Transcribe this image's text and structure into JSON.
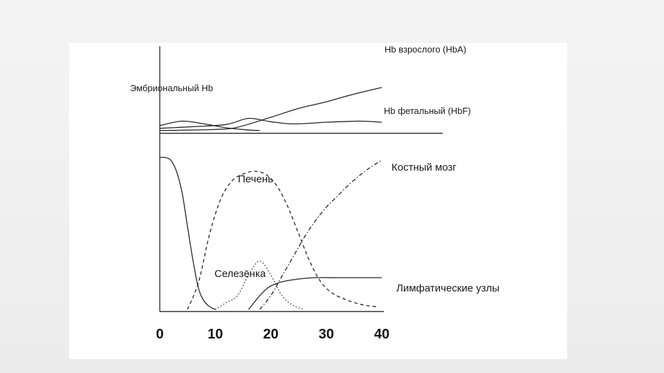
{
  "slide": {
    "background": "#efefef",
    "panel_color": "#ffffff"
  },
  "chart_data": [
    {
      "type": "line",
      "panel": "top",
      "series": [
        {
          "name": "Эмбриональный Hb",
          "style": "solid",
          "x": [
            0,
            4,
            8,
            12,
            16,
            18
          ],
          "y": [
            0.45,
            0.85,
            0.6,
            0.25,
            0.05,
            0.0
          ]
        },
        {
          "name": "Hb фетальный (HbF)",
          "style": "solid",
          "x": [
            0,
            6,
            12,
            16,
            20,
            24,
            30,
            36,
            40
          ],
          "y": [
            0.2,
            0.35,
            0.55,
            1.1,
            0.8,
            0.6,
            0.75,
            0.85,
            0.75
          ]
        },
        {
          "name": "Hb взрослого (HbA)",
          "style": "solid",
          "x": [
            0,
            10,
            14,
            20,
            25,
            30,
            35,
            40
          ],
          "y": [
            0.0,
            0.1,
            0.3,
            1.2,
            2.0,
            2.6,
            3.3,
            3.9
          ]
        }
      ]
    },
    {
      "type": "line",
      "panel": "bottom",
      "x_ticks": [
        "0",
        "10",
        "20",
        "30",
        "40"
      ],
      "xlim": [
        0,
        40
      ],
      "series": [
        {
          "name": "Селезёнка",
          "style": "dotted",
          "x": [
            10,
            12,
            14,
            16,
            18,
            20,
            22,
            24,
            26
          ],
          "y": [
            0.0,
            0.05,
            0.1,
            0.25,
            0.35,
            0.25,
            0.1,
            0.03,
            0.0
          ]
        },
        {
          "name": "Печень",
          "style": "dashed",
          "x": [
            5,
            7,
            9,
            11,
            13,
            15,
            17,
            19,
            21,
            23,
            25,
            27,
            29,
            31,
            33,
            35,
            37,
            39
          ],
          "y": [
            0.0,
            0.2,
            0.55,
            0.8,
            0.93,
            0.98,
            1.0,
            0.98,
            0.9,
            0.75,
            0.55,
            0.35,
            0.2,
            0.12,
            0.08,
            0.05,
            0.03,
            0.02
          ]
        },
        {
          "name": "Костный мозг",
          "style": "dash-dot",
          "x": [
            18,
            20,
            22,
            24,
            26,
            28,
            30,
            32,
            34,
            36,
            38,
            40
          ],
          "y": [
            0.0,
            0.1,
            0.24,
            0.38,
            0.52,
            0.64,
            0.74,
            0.82,
            0.9,
            0.97,
            1.03,
            1.08
          ]
        },
        {
          "name": "Лимфатические узлы",
          "style": "solid",
          "x": [
            16,
            17,
            18,
            19,
            20,
            22,
            25,
            28,
            32,
            36,
            40
          ],
          "y": [
            0.0,
            0.05,
            0.1,
            0.14,
            0.17,
            0.2,
            0.22,
            0.23,
            0.23,
            0.23,
            0.23
          ]
        },
        {
          "name": "",
          "style": "solid",
          "x": [
            0,
            1,
            2,
            3,
            4,
            5,
            6,
            7,
            8,
            9,
            10
          ],
          "y": [
            1.1,
            1.1,
            1.08,
            1.0,
            0.85,
            0.6,
            0.35,
            0.15,
            0.06,
            0.02,
            0.0
          ]
        }
      ]
    }
  ]
}
